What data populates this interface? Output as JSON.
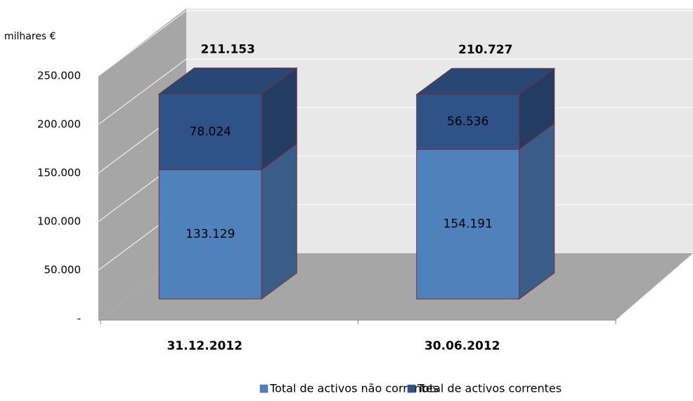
{
  "chart_data": {
    "type": "bar3d-stacked",
    "unit_label": "milhares €",
    "categories": [
      "31.12.2012",
      "30.06.2012"
    ],
    "series": [
      {
        "name": "Total de activos não correntes",
        "color": "#4f81bd",
        "values": [
          133129,
          154191
        ],
        "value_labels": [
          "133.129",
          "154.191"
        ]
      },
      {
        "name": "Total de activos correntes",
        "color": "#2f5389",
        "values": [
          78024,
          56536
        ],
        "value_labels": [
          "78.024",
          "56.536"
        ]
      }
    ],
    "totals": {
      "values": [
        211153,
        210727
      ],
      "value_labels": [
        "211.153",
        "210.727"
      ]
    },
    "ylim": [
      0,
      250000
    ],
    "yticks": [
      {
        "value": 0,
        "label": "-"
      },
      {
        "value": 50000,
        "label": "50.000"
      },
      {
        "value": 100000,
        "label": "100.000"
      },
      {
        "value": 150000,
        "label": "150.000"
      },
      {
        "value": 200000,
        "label": "200.000"
      },
      {
        "value": 250000,
        "label": "250.000"
      }
    ],
    "grid": true
  }
}
